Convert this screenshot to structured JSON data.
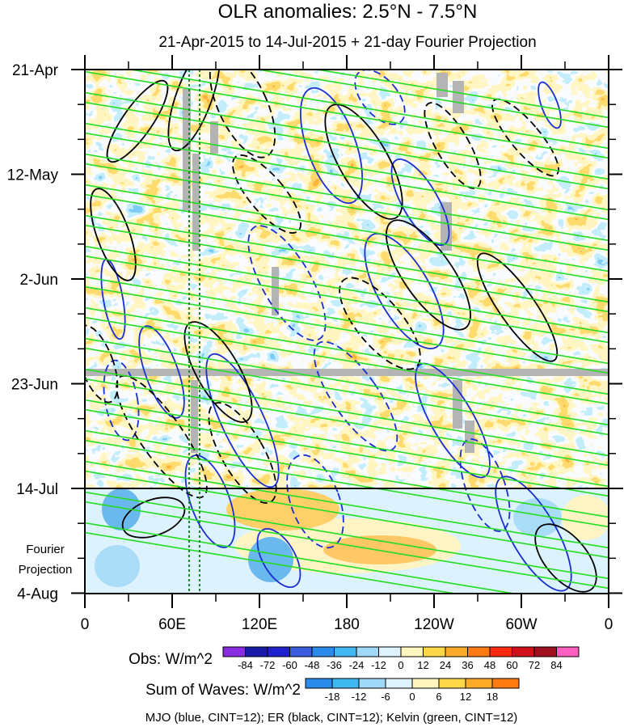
{
  "chart_data": {
    "type": "heatmap",
    "title": "OLR anomalies: 2.5°N - 7.5°N",
    "subtitle": "21-Apr-2015 to 14-Jul-2015 + 21-day Fourier Projection",
    "x_ticks": [
      "0",
      "60E",
      "120E",
      "180",
      "120W",
      "60W",
      "0"
    ],
    "y_ticks": [
      "21-Apr",
      "12-May",
      "2-Jun",
      "23-Jun",
      "14-Jul",
      "4-Aug"
    ],
    "projection_label": [
      "Fourier",
      "Projection"
    ],
    "obs_legend": {
      "title": "Obs: W/m^2",
      "labels": [
        "-84",
        "-72",
        "-60",
        "-48",
        "-36",
        "-24",
        "-12",
        "0",
        "12",
        "24",
        "36",
        "48",
        "60",
        "72",
        "84"
      ],
      "colors": [
        "#8a2be2",
        "#1a1aa8",
        "#2020d0",
        "#3a5de0",
        "#2b8bea",
        "#3fb8f0",
        "#9fd8f8",
        "#ddf3ff",
        "#fff6c0",
        "#ffd84a",
        "#ffab2a",
        "#ff7a10",
        "#ff2a10",
        "#d0101a",
        "#a01020",
        "#ff60c0"
      ]
    },
    "waves_legend": {
      "title": "Sum of Waves: W/m^2",
      "labels": [
        "-18",
        "-12",
        "-6",
        "0",
        "6",
        "12",
        "18"
      ],
      "colors": [
        "#2b8bea",
        "#3fb8f0",
        "#9fd8f8",
        "#ddf3ff",
        "#fff6c0",
        "#ffd84a",
        "#ffab2a",
        "#ff7a10"
      ]
    },
    "footer": "MJO (blue, CINT=12); ER (black, CINT=12); Kelvin (green, CINT=12)",
    "overlay_colors": {
      "mjo": "#1a2fd0",
      "er": "#000000",
      "kelvin": "#22dd22",
      "missing": "#b4b4b4"
    }
  }
}
